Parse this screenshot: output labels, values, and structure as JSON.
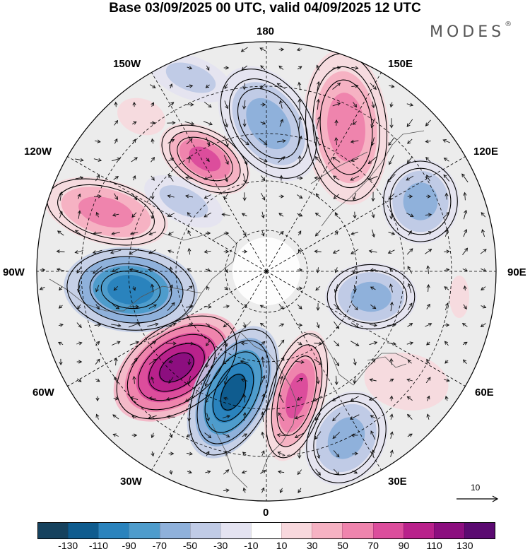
{
  "header": {
    "title": "Base 03/09/2025 00 UTC, valid 04/09/2025 12 UTC",
    "brand": "MODES",
    "brand_mark": "®"
  },
  "map": {
    "projection": "north polar stereographic",
    "longitude_labels": {
      "n180": "180",
      "e150": "150E",
      "e120": "120E",
      "e90": "90E",
      "e60": "60E",
      "e30": "30E",
      "p0": "0",
      "w30": "30W",
      "w60": "60W",
      "w90": "90W",
      "w120": "120W",
      "w150": "150W"
    },
    "colors": {
      "background_land": "#ececec",
      "coastline": "#555555",
      "graticule": "#000000",
      "vector": "#111111",
      "contour": "#000000"
    }
  },
  "reference_vector": {
    "label": "10"
  },
  "colorbar": {
    "colors": [
      "#16425e",
      "#0f5c8f",
      "#2a83bd",
      "#4e9ccc",
      "#8fb1db",
      "#c0cbe6",
      "#e4e3f1",
      "#ffffff",
      "#f8d8dd",
      "#f6b2c3",
      "#ef84ad",
      "#dc4d9c",
      "#b9218b",
      "#8c0e7f",
      "#5b0a71"
    ],
    "labels": [
      "-130",
      "-110",
      "-90",
      "-70",
      "-50",
      "-30",
      "-10",
      "10",
      "30",
      "50",
      "70",
      "90",
      "110",
      "130"
    ]
  }
}
